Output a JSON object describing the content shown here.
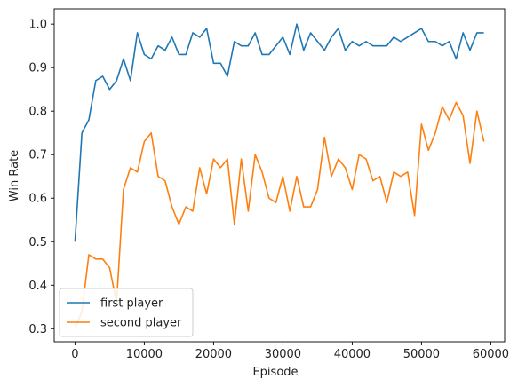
{
  "chart_data": {
    "type": "line",
    "xlabel": "Episode",
    "ylabel": "Win Rate",
    "xlim": [
      -3000,
      62000
    ],
    "ylim": [
      0.27,
      1.035
    ],
    "xticks": [
      0,
      10000,
      20000,
      30000,
      40000,
      50000,
      60000
    ],
    "yticks": [
      0.3,
      0.4,
      0.5,
      0.6,
      0.7,
      0.8,
      0.9,
      1.0
    ],
    "xtick_labels": [
      "0",
      "10000",
      "20000",
      "30000",
      "40000",
      "50000",
      "60000"
    ],
    "ytick_labels": [
      "0.3",
      "0.4",
      "0.5",
      "0.6",
      "0.7",
      "0.8",
      "0.9",
      "1.0"
    ],
    "grid": false,
    "legend_position": "lower-left",
    "x": [
      0,
      1000,
      2000,
      3000,
      4000,
      5000,
      6000,
      7000,
      8000,
      9000,
      10000,
      11000,
      12000,
      13000,
      14000,
      15000,
      16000,
      17000,
      18000,
      19000,
      20000,
      21000,
      22000,
      23000,
      24000,
      25000,
      26000,
      27000,
      28000,
      29000,
      30000,
      31000,
      32000,
      33000,
      34000,
      35000,
      36000,
      37000,
      38000,
      39000,
      40000,
      41000,
      42000,
      43000,
      44000,
      45000,
      46000,
      47000,
      48000,
      49000,
      50000,
      51000,
      52000,
      53000,
      54000,
      55000,
      56000,
      57000,
      58000,
      59000
    ],
    "series": [
      {
        "name": "first player",
        "color": "#1f77b4",
        "values": [
          0.5,
          0.75,
          0.78,
          0.87,
          0.88,
          0.85,
          0.87,
          0.92,
          0.87,
          0.98,
          0.93,
          0.92,
          0.95,
          0.94,
          0.97,
          0.93,
          0.93,
          0.98,
          0.97,
          0.99,
          0.91,
          0.91,
          0.88,
          0.96,
          0.95,
          0.95,
          0.98,
          0.93,
          0.93,
          0.95,
          0.97,
          0.93,
          1.0,
          0.94,
          0.98,
          0.96,
          0.94,
          0.97,
          0.99,
          0.94,
          0.96,
          0.95,
          0.96,
          0.95,
          0.95,
          0.95,
          0.97,
          0.96,
          0.97,
          0.98,
          0.99,
          0.96,
          0.96,
          0.95,
          0.96,
          0.92,
          0.98,
          0.94,
          0.98,
          0.98
        ]
      },
      {
        "name": "second player",
        "color": "#ff7f0e",
        "values": [
          0.3,
          0.34,
          0.47,
          0.46,
          0.46,
          0.44,
          0.36,
          0.62,
          0.67,
          0.66,
          0.73,
          0.75,
          0.65,
          0.64,
          0.58,
          0.54,
          0.58,
          0.57,
          0.67,
          0.61,
          0.69,
          0.67,
          0.69,
          0.54,
          0.69,
          0.57,
          0.7,
          0.66,
          0.6,
          0.59,
          0.65,
          0.57,
          0.65,
          0.58,
          0.58,
          0.62,
          0.74,
          0.65,
          0.69,
          0.67,
          0.62,
          0.7,
          0.69,
          0.64,
          0.65,
          0.59,
          0.66,
          0.65,
          0.66,
          0.56,
          0.77,
          0.71,
          0.75,
          0.81,
          0.78,
          0.82,
          0.79,
          0.68,
          0.8,
          0.73
        ]
      }
    ]
  }
}
